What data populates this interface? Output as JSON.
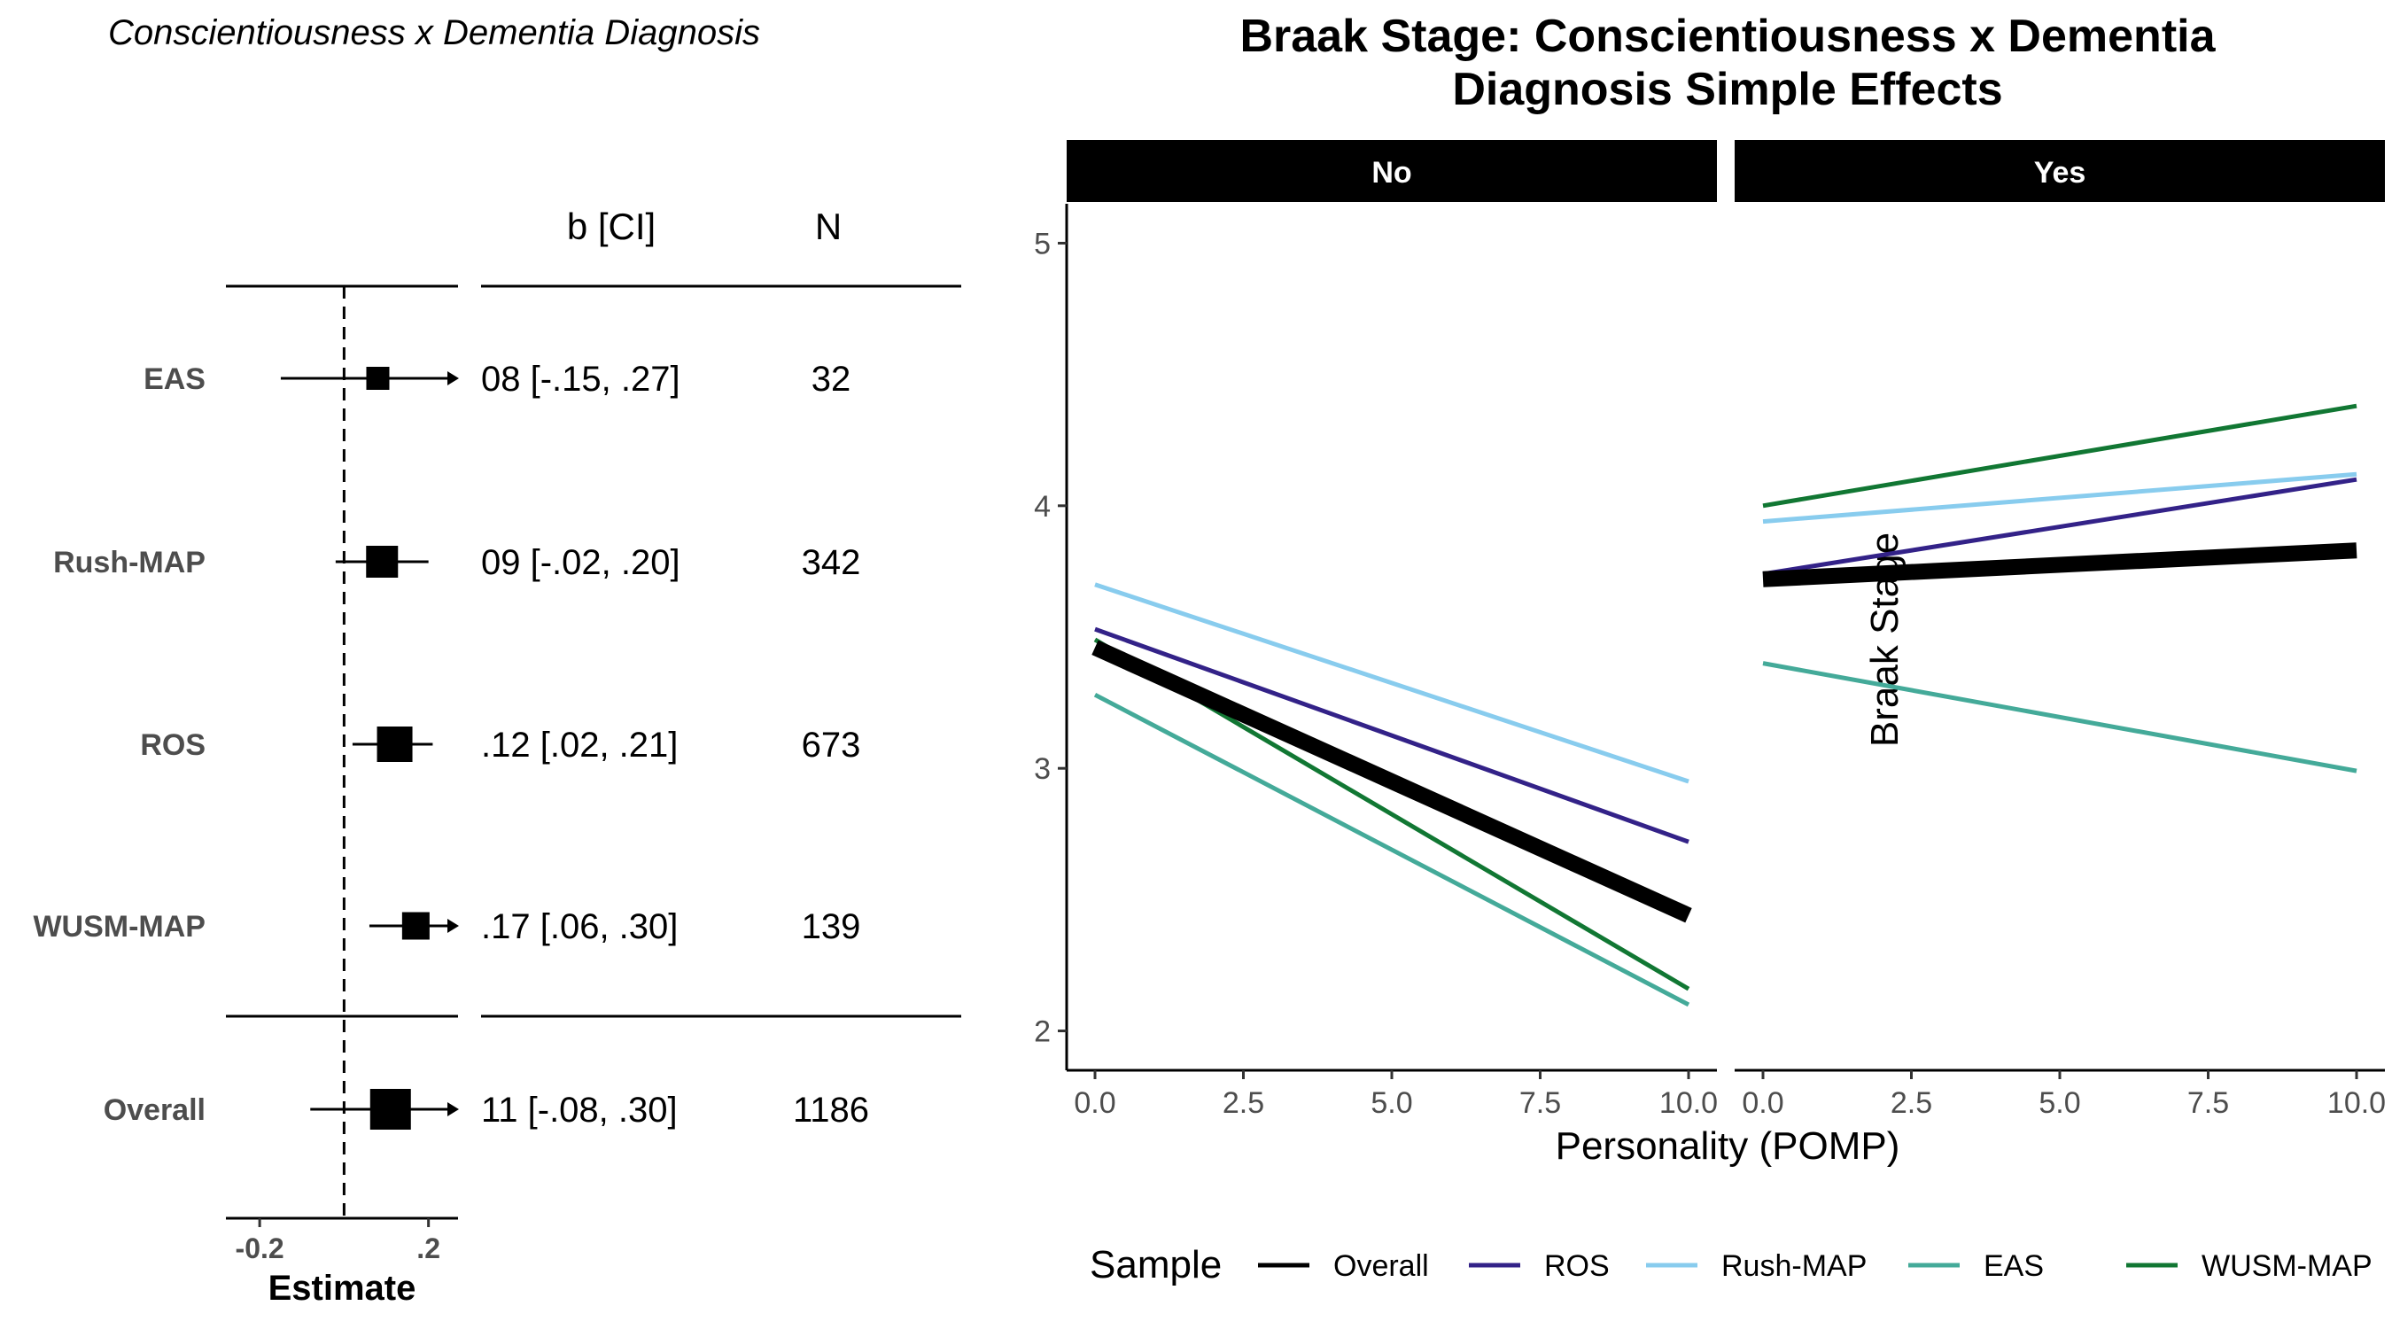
{
  "forest": {
    "title": "Conscientiousness x Dementia Diagnosis",
    "col_headers": {
      "estimate": "b [CI]",
      "n": "N"
    },
    "xlabel": "Estimate",
    "xticks": [
      {
        "value": -0.2,
        "label": "-0.2"
      },
      {
        "value": 0.2,
        "label": ".2"
      }
    ],
    "xlim": [
      -0.28,
      0.27
    ],
    "ref_line": 0,
    "rows": [
      {
        "label": "EAS",
        "est": 0.08,
        "lo": -0.15,
        "hi": 0.27,
        "ci_text": "08 [-.15, .27]",
        "n": "32",
        "arrow": true
      },
      {
        "label": "Rush-MAP",
        "est": 0.09,
        "lo": -0.02,
        "hi": 0.2,
        "ci_text": "09 [-.02, .20]",
        "n": "342",
        "arrow": false
      },
      {
        "label": "ROS",
        "est": 0.12,
        "lo": 0.02,
        "hi": 0.21,
        "ci_text": ".12 [.02, .21]",
        "n": "673",
        "arrow": false
      },
      {
        "label": "WUSM-MAP",
        "est": 0.17,
        "lo": 0.06,
        "hi": 0.3,
        "ci_text": ".17 [.06, .30]",
        "n": "139",
        "arrow": true
      }
    ],
    "overall": {
      "label": "Overall",
      "est": 0.11,
      "lo": -0.08,
      "hi": 0.3,
      "ci_text": "11 [-.08, .30]",
      "n": "1186",
      "arrow": true
    }
  },
  "chart_data": {
    "type": "line",
    "title": "Braak Stage: Conscientiousness x Dementia Diagnosis Simple Effects",
    "title_lines": [
      "Braak Stage: Conscientiousness x Dementia",
      "Diagnosis Simple Effects"
    ],
    "xlabel": "Personality (POMP)",
    "ylabel": "Braak Stage",
    "xlim": [
      0,
      10
    ],
    "ylim": [
      1.85,
      5.15
    ],
    "xticks": [
      "0.0",
      "2.5",
      "5.0",
      "7.5",
      "10.0"
    ],
    "yticks": [
      "2",
      "3",
      "4",
      "5"
    ],
    "grid": false,
    "facets": [
      "No",
      "Yes"
    ],
    "legend": {
      "title": "Sample",
      "position": "bottom"
    },
    "series": [
      {
        "name": "WUSM-MAP",
        "color": "#117733",
        "emphasis": false,
        "values": {
          "No": [
            3.49,
            2.16
          ],
          "Yes": [
            4.0,
            4.38
          ]
        }
      },
      {
        "name": "EAS",
        "color": "#44AA99",
        "emphasis": false,
        "values": {
          "No": [
            3.28,
            2.1
          ],
          "Yes": [
            3.4,
            2.99
          ]
        }
      },
      {
        "name": "Rush-MAP",
        "color": "#88CCEE",
        "emphasis": false,
        "values": {
          "No": [
            3.7,
            2.95
          ],
          "Yes": [
            3.94,
            4.12
          ]
        }
      },
      {
        "name": "ROS",
        "color": "#332288",
        "emphasis": false,
        "values": {
          "No": [
            3.53,
            2.72
          ],
          "Yes": [
            3.74,
            4.1
          ]
        }
      },
      {
        "name": "Overall",
        "color": "#000000",
        "emphasis": true,
        "values": {
          "No": [
            3.46,
            2.44
          ],
          "Yes": [
            3.72,
            3.83
          ]
        }
      }
    ],
    "legend_order": [
      "Overall",
      "ROS",
      "Rush-MAP",
      "EAS",
      "WUSM-MAP"
    ]
  }
}
